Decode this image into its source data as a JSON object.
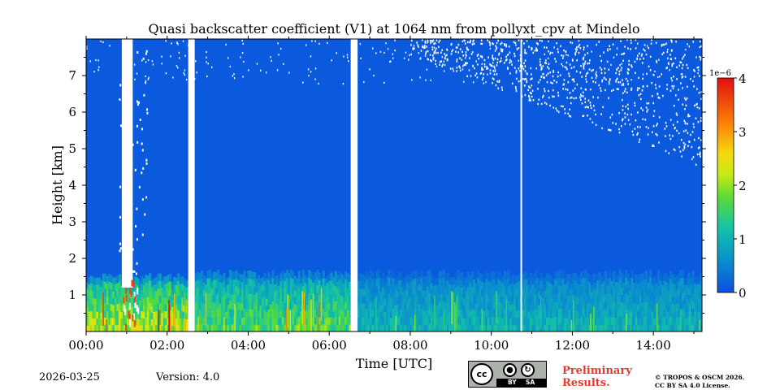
{
  "chart_data": {
    "type": "heatmap",
    "title": "Quasi backscatter coefficient (V1) at 1064 nm from pollyxt_cpv at Mindelo",
    "xlabel": "Time [UTC]",
    "ylabel": "Height [km]",
    "x_unit": "hours UTC",
    "xlim": [
      0,
      15.2
    ],
    "ylim": [
      0,
      8
    ],
    "x_ticks": [
      0,
      2,
      4,
      6,
      8,
      10,
      12,
      14
    ],
    "x_tick_labels": [
      "00:00",
      "02:00",
      "04:00",
      "06:00",
      "08:00",
      "10:00",
      "12:00",
      "14:00"
    ],
    "y_ticks": [
      1,
      2,
      3,
      4,
      5,
      6,
      7
    ],
    "y_tick_labels": [
      "1",
      "2",
      "3",
      "4",
      "5",
      "6",
      "7"
    ],
    "colorbar": {
      "min": 0,
      "max": 4,
      "exponent_label": "1e−6",
      "ticks": [
        0,
        1,
        2,
        3,
        4
      ],
      "tick_labels": [
        "0",
        "1",
        "2",
        "3",
        "4"
      ],
      "colormap": "jet"
    },
    "background_value": 0.1,
    "data_gaps_hours": [
      [
        2.52,
        2.68
      ],
      [
        6.53,
        6.7
      ],
      [
        10.72,
        10.76
      ]
    ],
    "cloud_columns_hours": [
      [
        0.8,
        1.2
      ]
    ],
    "layers": [
      {
        "name": "boundary layer (early)",
        "t_start": 0.0,
        "t_end": 2.5,
        "top_km": 1.5,
        "value": 1.9
      },
      {
        "name": "boundary layer (mid)",
        "t_start": 2.68,
        "t_end": 6.53,
        "top_km": 1.6,
        "value": 1.5
      },
      {
        "name": "boundary layer (late)",
        "t_start": 6.7,
        "t_end": 15.2,
        "top_km": 1.6,
        "value": 0.9
      }
    ],
    "noise_region": {
      "t_start": 8.0,
      "t_end": 15.2,
      "min_height_km": 4.5,
      "note": "white speckle (no data) increasing with time"
    }
  },
  "footer": {
    "date": "2026-03-25",
    "version": "Version: 4.0",
    "preliminary_line1": "Preliminary",
    "preliminary_line2": "Results.",
    "copyright_line1": "© TROPOS & OSCM 2026.",
    "copyright_line2": "CC BY SA 4.0 License.",
    "cc_main": "cc",
    "cc_by": "BY",
    "cc_sa": "SA"
  },
  "colors": {
    "background_blue": "#0b4ee0",
    "preliminary_red": "#e8382e"
  }
}
